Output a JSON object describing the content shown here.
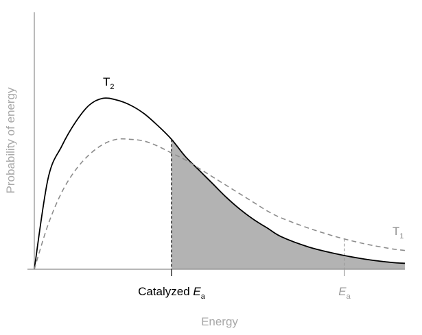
{
  "chart_data": {
    "type": "line",
    "xlabel": "Energy",
    "ylabel": "Probability of energy",
    "grid": false,
    "series": [
      {
        "name": "T₂",
        "name_base": "T",
        "name_sub": "2",
        "style": "solid",
        "color": "#000000",
        "x": [
          0,
          0.5,
          1,
          1.5,
          2,
          2.5,
          3,
          3.5,
          4,
          4.5,
          5,
          5.5,
          6,
          6.5,
          7,
          7.5,
          8,
          8.5,
          9,
          10,
          11,
          12,
          13,
          13.5
        ],
        "y": [
          0,
          0.53,
          0.72,
          0.86,
          0.96,
          1.0,
          0.99,
          0.96,
          0.91,
          0.84,
          0.76,
          0.66,
          0.58,
          0.5,
          0.42,
          0.35,
          0.29,
          0.24,
          0.19,
          0.13,
          0.09,
          0.06,
          0.04,
          0.035
        ]
      },
      {
        "name": "T₁",
        "name_base": "T",
        "name_sub": "1",
        "style": "dashed",
        "color": "#8c8c8c",
        "x": [
          0,
          0.5,
          1,
          1.5,
          2,
          2.5,
          3,
          3.5,
          4,
          4.5,
          5,
          5.5,
          6,
          6.5,
          7,
          7.5,
          8,
          8.5,
          9,
          10,
          11,
          12,
          13,
          13.5
        ],
        "y": [
          0,
          0.26,
          0.45,
          0.58,
          0.67,
          0.73,
          0.76,
          0.76,
          0.75,
          0.72,
          0.68,
          0.64,
          0.59,
          0.54,
          0.49,
          0.44,
          0.39,
          0.34,
          0.3,
          0.24,
          0.19,
          0.15,
          0.12,
          0.11
        ]
      }
    ],
    "markers": [
      {
        "label": "Catalyzed E",
        "label_prefix": "Catalyzed ",
        "label_italic": "E",
        "label_sub": "a",
        "x": 5,
        "color": "#000000",
        "shaded_from_here": true
      },
      {
        "label": "E",
        "label_prefix": "",
        "label_italic": "E",
        "label_sub": "a",
        "x": 11.3,
        "color": "#9a9a9a",
        "shaded_from_here": false
      }
    ],
    "xlim": [
      0,
      13.5
    ],
    "ylim": [
      0,
      1.05
    ],
    "colors": {
      "axis": "#8c8c8c",
      "shade": "#b3b3b3",
      "axis_label": "#a8a8a8"
    }
  }
}
